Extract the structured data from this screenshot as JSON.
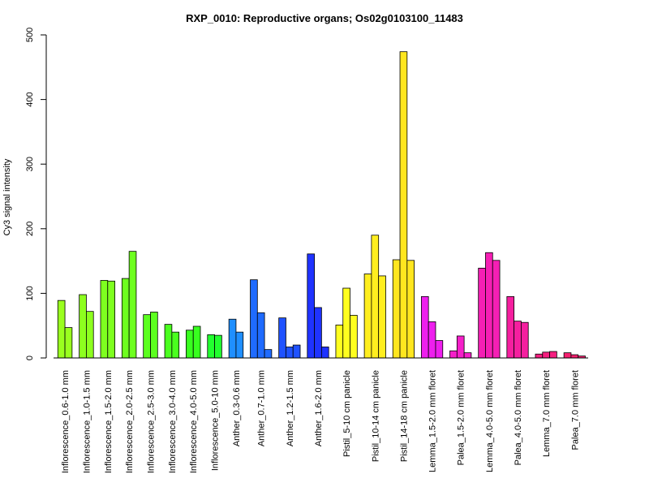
{
  "chart_data": {
    "type": "bar",
    "title": "RXP_0010: Reproductive organs; Os02g0103100_11483",
    "xlabel": "",
    "ylabel": "Cy3 signal intensity",
    "ylim": [
      0,
      500
    ],
    "yticks": [
      0,
      100,
      200,
      300,
      400,
      500
    ],
    "grid": false,
    "groups": [
      {
        "label": "Inflorescence_0.6-1.0 mm",
        "color": "#9AFF1F",
        "values": [
          89,
          47
        ]
      },
      {
        "label": "Inflorescence_1.0-1.5 mm",
        "color": "#8DFF1F",
        "values": [
          98,
          72
        ]
      },
      {
        "label": "Inflorescence_1.5-2.0 mm",
        "color": "#7EFF1F",
        "values": [
          120,
          119
        ]
      },
      {
        "label": "Inflorescence_2.0-2.5 mm",
        "color": "#6EFF1F",
        "values": [
          123,
          165
        ]
      },
      {
        "label": "Inflorescence_2.5-3.0 mm",
        "color": "#5CFF1F",
        "values": [
          67,
          71
        ]
      },
      {
        "label": "Inflorescence_3.0-4.0 mm",
        "color": "#4AFF1F",
        "values": [
          52,
          40
        ]
      },
      {
        "label": "Inflorescence_4.0-5.0 mm",
        "color": "#38FF1F",
        "values": [
          43,
          49
        ]
      },
      {
        "label": "Inflorescence_5.0-10 mm",
        "color": "#22FF2F",
        "values": [
          36,
          35
        ]
      },
      {
        "label": "Anther_0.3-0.6 mm",
        "color": "#1F8FFF",
        "values": [
          60,
          40
        ]
      },
      {
        "label": "Anther_0.7-1.0 mm",
        "color": "#1F6BFF",
        "values": [
          121,
          70,
          13
        ]
      },
      {
        "label": "Anther_1.2-1.5 mm",
        "color": "#1F52FF",
        "values": [
          62,
          17,
          20
        ]
      },
      {
        "label": "Anther_1.6-2.0 mm",
        "color": "#1F33FF",
        "values": [
          161,
          78,
          17
        ]
      },
      {
        "label": "Pistil_5-10 cm panicle",
        "color": "#FFFF1F",
        "values": [
          51,
          108,
          66
        ]
      },
      {
        "label": "Pistil_10-14 cm panicle",
        "color": "#FFEE1F",
        "values": [
          130,
          190,
          127
        ]
      },
      {
        "label": "Pistil_14-18 cm panicle",
        "color": "#FFE61F",
        "values": [
          152,
          474,
          151
        ]
      },
      {
        "label": "Lemma_1.5-2.0 mm floret",
        "color": "#EE1FEE",
        "values": [
          95,
          56,
          27
        ]
      },
      {
        "label": "Palea_1.5-2.0 mm floret",
        "color": "#F51FC9",
        "values": [
          11,
          34,
          8
        ]
      },
      {
        "label": "Lemma_4.0-5.0 mm floret",
        "color": "#F51FB4",
        "values": [
          139,
          163,
          151
        ]
      },
      {
        "label": "Palea_4.0-5.0 mm floret",
        "color": "#F51F9F",
        "values": [
          95,
          57,
          55
        ]
      },
      {
        "label": "Lemma_7.0 mm floret",
        "color": "#F51F80",
        "values": [
          6,
          9,
          10
        ]
      },
      {
        "label": "Palea_7.0 mm floret",
        "color": "#F51F6F",
        "values": [
          8,
          5,
          3
        ]
      }
    ]
  }
}
